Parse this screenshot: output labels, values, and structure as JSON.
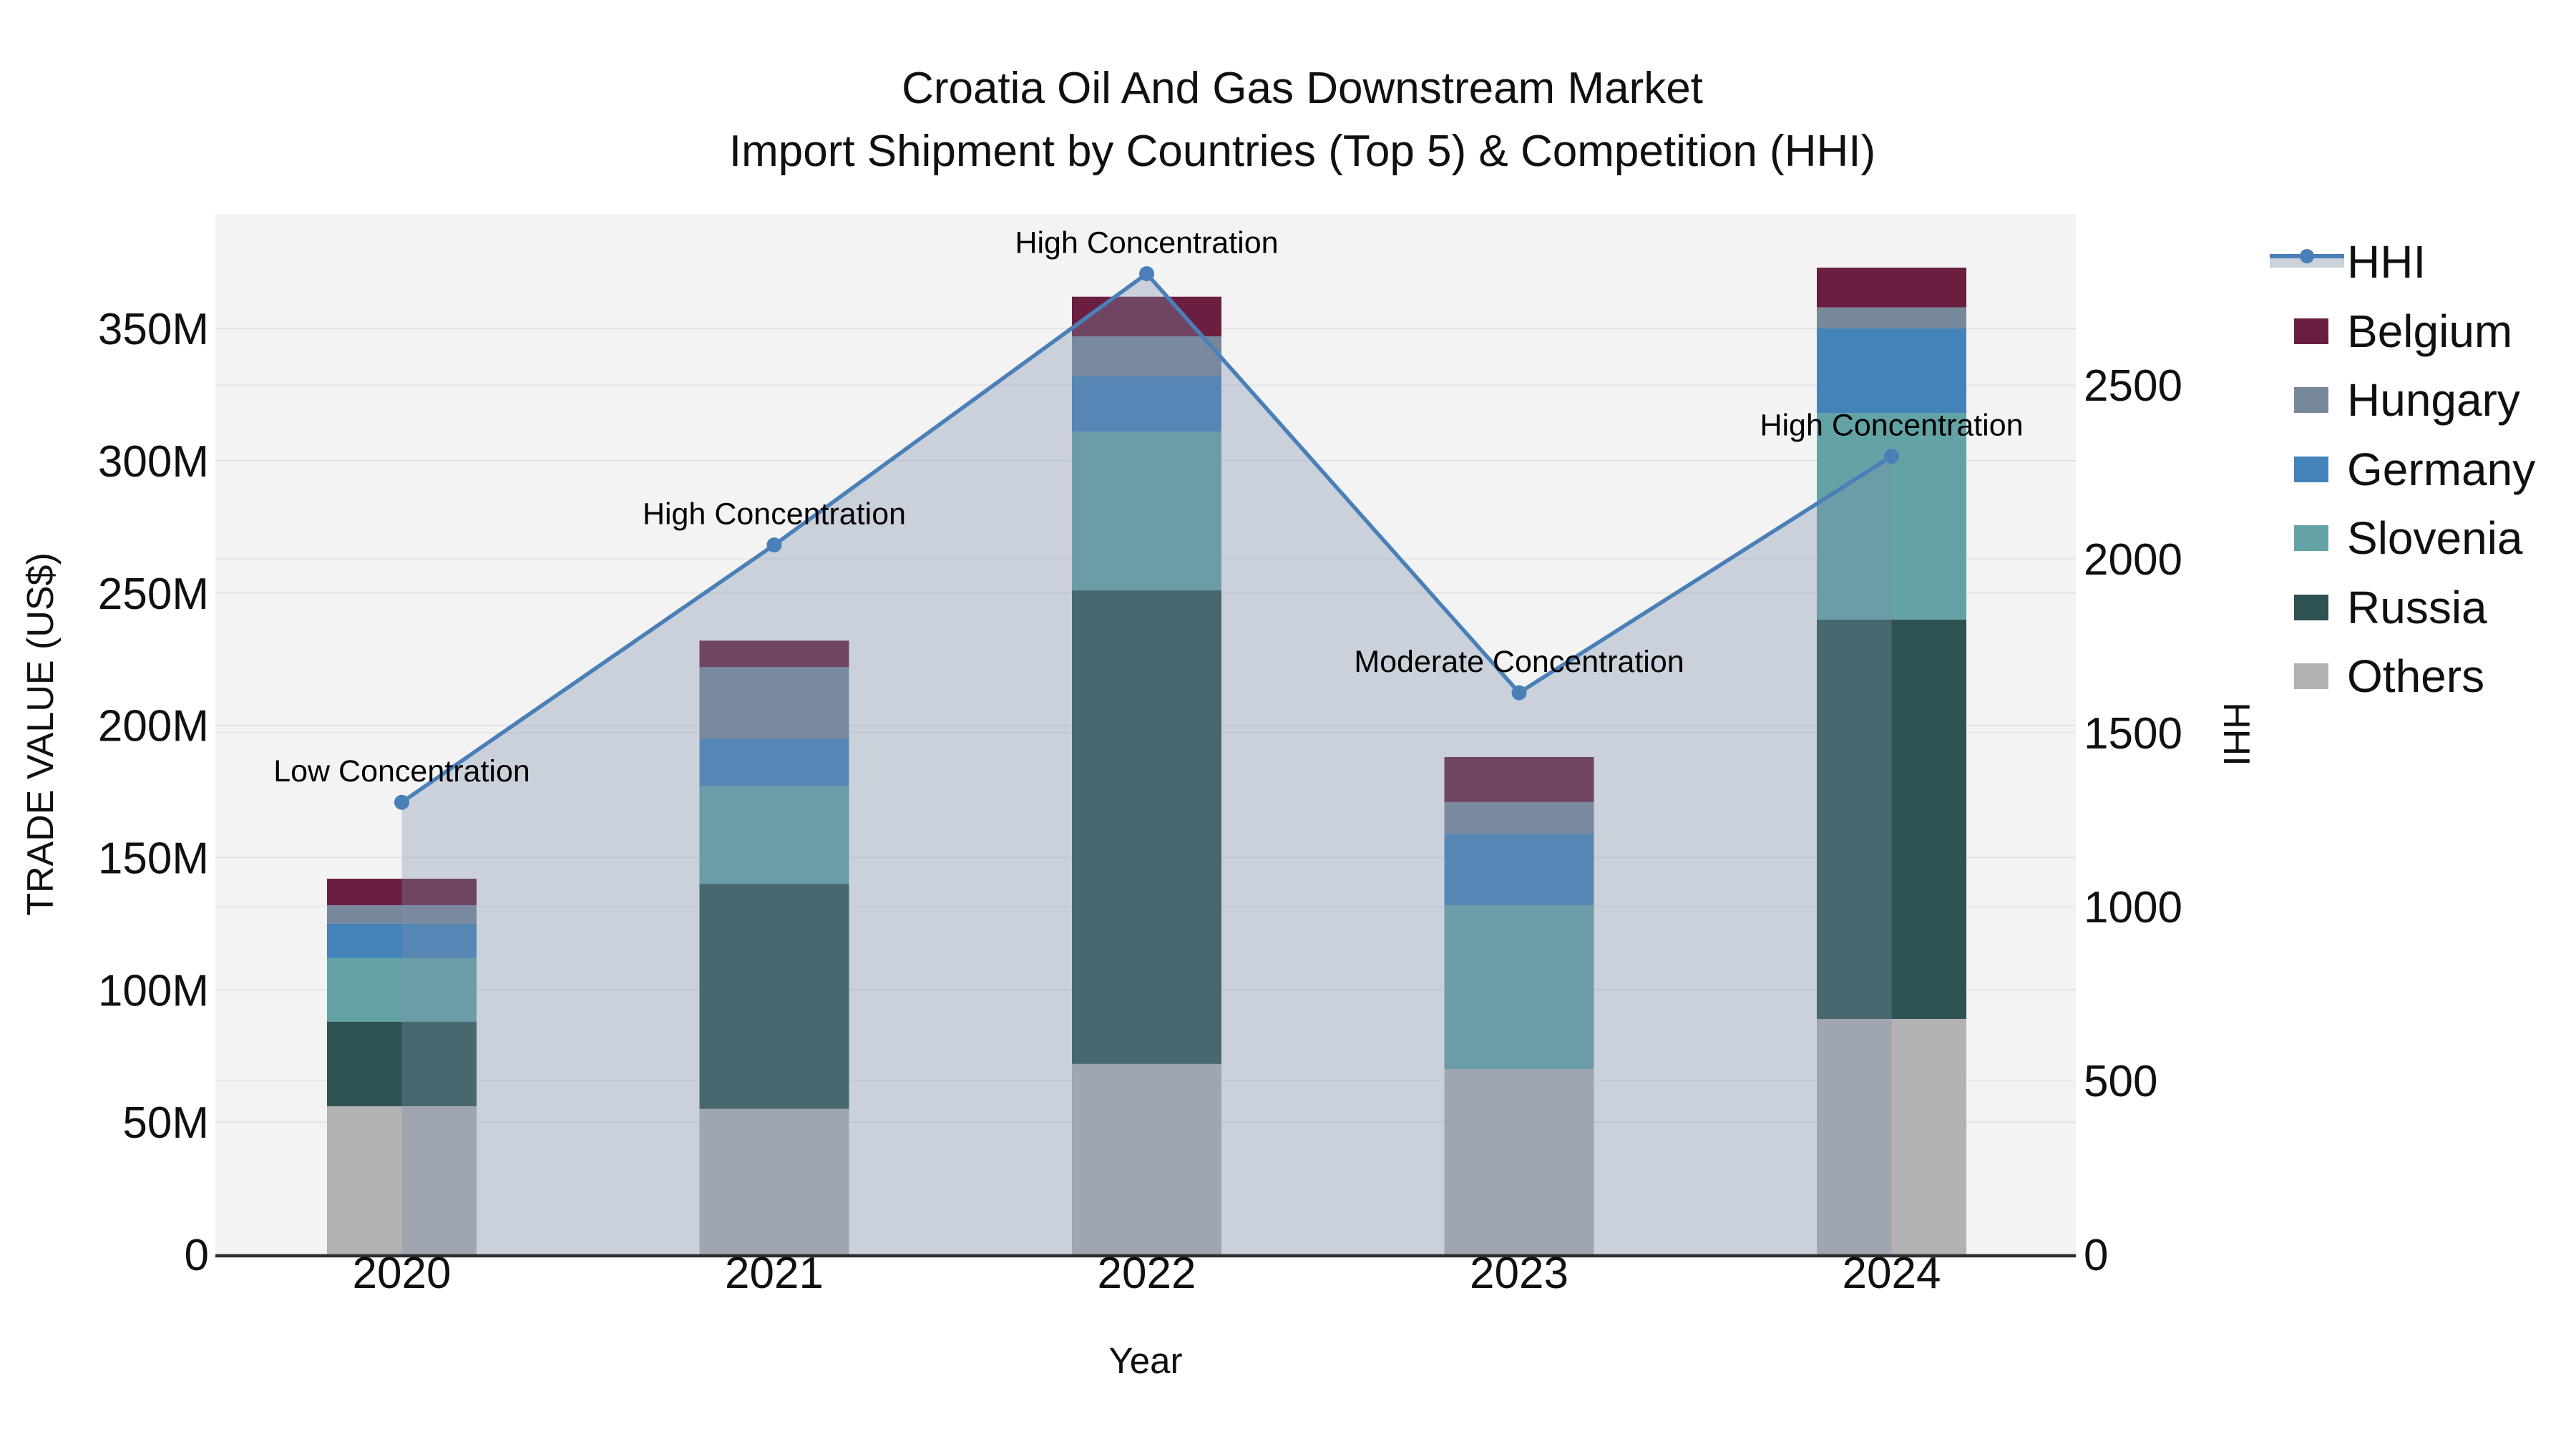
{
  "title": {
    "line1": "Croatia Oil And Gas Downstream Market",
    "line2": "Import Shipment by Countries (Top 5) & Competition (HHI)"
  },
  "chart_data": {
    "type": "bar",
    "subtype": "stacked-bars-with-line-area-dual-axis",
    "categories": [
      "2020",
      "2021",
      "2022",
      "2023",
      "2024"
    ],
    "xlabel": "Year",
    "y_left": {
      "label": "TRADE VALUE (US$)",
      "unit": "million US$",
      "tick_labels": [
        "0",
        "50M",
        "100M",
        "150M",
        "200M",
        "250M",
        "300M",
        "350M"
      ],
      "tick_values": [
        0,
        50,
        100,
        150,
        200,
        250,
        300,
        350
      ],
      "range": [
        0,
        393
      ],
      "grid": true
    },
    "y_right": {
      "label": "HHI",
      "tick_labels": [
        "0",
        "500",
        "1000",
        "1500",
        "2000",
        "2500"
      ],
      "tick_values": [
        0,
        500,
        1000,
        1500,
        2000,
        2500
      ],
      "range": [
        0,
        2990
      ],
      "grid": true
    },
    "stack_order_bottom_to_top": [
      "Others",
      "Russia",
      "Slovenia",
      "Germany",
      "Hungary",
      "Belgium"
    ],
    "series": [
      {
        "name": "Belgium",
        "color": "#6b1e3f",
        "values": [
          10,
          10,
          15,
          17,
          15
        ]
      },
      {
        "name": "Hungary",
        "color": "#78889b",
        "values": [
          7,
          27,
          15,
          12,
          8
        ]
      },
      {
        "name": "Germany",
        "color": "#4482ba",
        "values": [
          13,
          18,
          21,
          27,
          32
        ]
      },
      {
        "name": "Slovenia",
        "color": "#63a3a6",
        "values": [
          24,
          37,
          60,
          62,
          78
        ]
      },
      {
        "name": "Russia",
        "color": "#2e5251",
        "values": [
          32,
          85,
          179,
          0,
          151
        ]
      },
      {
        "name": "Others",
        "color": "#b2b2b4",
        "values": [
          56,
          55,
          72,
          70,
          89
        ]
      }
    ],
    "totals_musd": [
      142,
      232,
      362,
      188,
      373
    ],
    "hhi_line": {
      "name": "HHI",
      "line_color": "#4a7fb7",
      "marker_color": "#4a7fb7",
      "area_fill_color": "rgba(124,145,170,0.34)",
      "values": [
        1300,
        2040,
        2820,
        1615,
        2295
      ]
    },
    "annotations": [
      {
        "category": "2020",
        "text": "Low Concentration"
      },
      {
        "category": "2021",
        "text": "High Concentration"
      },
      {
        "category": "2022",
        "text": "High Concentration"
      },
      {
        "category": "2023",
        "text": "Moderate Concentration"
      },
      {
        "category": "2024",
        "text": "High Concentration"
      }
    ],
    "legend_order": [
      "HHI",
      "Belgium",
      "Hungary",
      "Germany",
      "Slovenia",
      "Russia",
      "Others"
    ],
    "legend_position": "right"
  },
  "colors": {
    "page_bg": "#ffffff",
    "plot_bg": "#f3f3f4",
    "grid_left": "#e3e3e5",
    "grid_right": "#e8e8ea",
    "axis_line": "#2e2e2e",
    "text": "#101010",
    "hhi_legend_band": "#cbd2dc"
  }
}
